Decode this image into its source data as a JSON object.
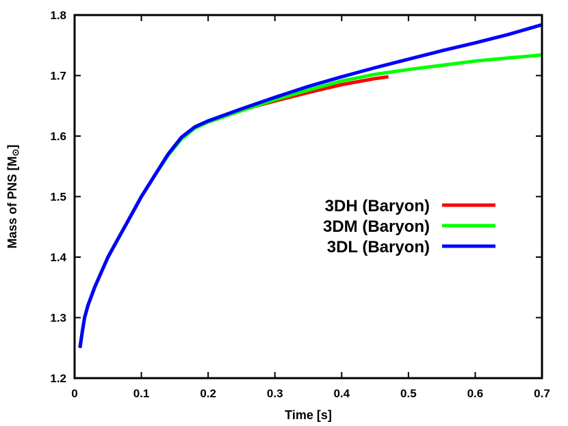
{
  "chart_data": {
    "type": "line",
    "xlabel": "Time [s]",
    "ylabel_main": "Mass of PNS [M",
    "ylabel_sub": "⊙",
    "ylabel_close": "]",
    "xlim": [
      0,
      0.7
    ],
    "ylim": [
      1.2,
      1.8
    ],
    "xticks": [
      0,
      0.1,
      0.2,
      0.3,
      0.4,
      0.5,
      0.6,
      0.7
    ],
    "xtick_labels": [
      "0",
      "0.1",
      "0.2",
      "0.3",
      "0.4",
      "0.5",
      "0.6",
      "0.7"
    ],
    "yticks": [
      1.2,
      1.3,
      1.4,
      1.5,
      1.6,
      1.7,
      1.8
    ],
    "ytick_labels": [
      "1.2",
      "1.3",
      "1.4",
      "1.5",
      "1.6",
      "1.7",
      "1.8"
    ],
    "grid": false,
    "legend_position": "right",
    "series": [
      {
        "name": "3DH (Baryon)",
        "color": "#ff0000",
        "x": [
          0.008,
          0.012,
          0.015,
          0.02,
          0.03,
          0.04,
          0.05,
          0.06,
          0.08,
          0.1,
          0.12,
          0.14,
          0.16,
          0.18,
          0.2,
          0.25,
          0.3,
          0.35,
          0.4,
          0.45,
          0.47
        ],
        "y": [
          1.25,
          1.28,
          1.3,
          1.32,
          1.35,
          1.375,
          1.4,
          1.42,
          1.46,
          1.5,
          1.535,
          1.57,
          1.598,
          1.615,
          1.625,
          1.643,
          1.658,
          1.672,
          1.685,
          1.695,
          1.698
        ]
      },
      {
        "name": "3DM (Baryon)",
        "color": "#00ff00",
        "x": [
          0.008,
          0.012,
          0.015,
          0.02,
          0.03,
          0.04,
          0.05,
          0.06,
          0.08,
          0.1,
          0.12,
          0.14,
          0.16,
          0.18,
          0.2,
          0.25,
          0.3,
          0.35,
          0.4,
          0.45,
          0.5,
          0.55,
          0.6,
          0.65,
          0.7
        ],
        "y": [
          1.25,
          1.28,
          1.3,
          1.32,
          1.35,
          1.375,
          1.4,
          1.42,
          1.46,
          1.5,
          1.535,
          1.568,
          1.595,
          1.613,
          1.623,
          1.642,
          1.66,
          1.676,
          1.691,
          1.702,
          1.71,
          1.717,
          1.724,
          1.729,
          1.734
        ]
      },
      {
        "name": "3DL (Baryon)",
        "color": "#0000ff",
        "x": [
          0.008,
          0.012,
          0.015,
          0.02,
          0.03,
          0.04,
          0.05,
          0.06,
          0.08,
          0.1,
          0.12,
          0.14,
          0.16,
          0.18,
          0.2,
          0.25,
          0.3,
          0.35,
          0.4,
          0.45,
          0.5,
          0.55,
          0.6,
          0.65,
          0.7
        ],
        "y": [
          1.25,
          1.28,
          1.3,
          1.32,
          1.35,
          1.375,
          1.4,
          1.42,
          1.46,
          1.5,
          1.535,
          1.57,
          1.598,
          1.615,
          1.625,
          1.645,
          1.664,
          1.682,
          1.698,
          1.713,
          1.727,
          1.741,
          1.754,
          1.768,
          1.784
        ]
      }
    ]
  }
}
